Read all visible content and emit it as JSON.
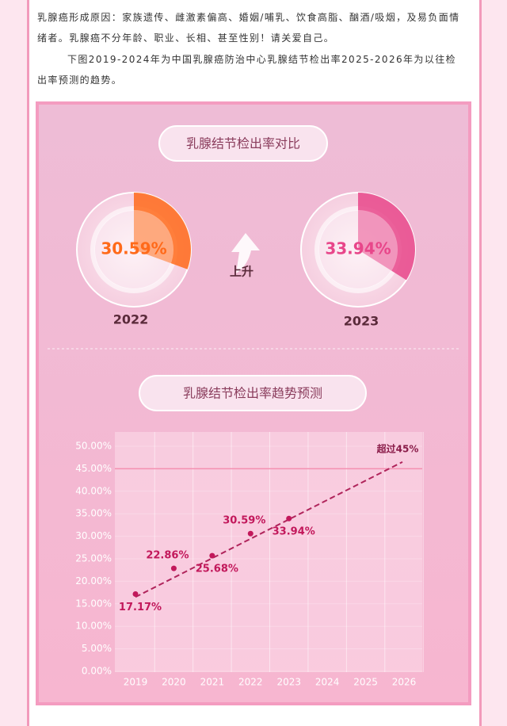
{
  "paragraphs": [
    "乳腺癌形成原因：家族遗传、雌激素偏高、婚姻/哺乳、饮食高脂、酗酒/吸烟，及易负面情绪者。乳腺癌不分年龄、职业、长相、甚至性别！请关爱自己。",
    "下图2019-2024年为中国乳腺癌防治中心乳腺结节检出率2025-2026年为以往检出率预测的趋势。"
  ],
  "comparison": {
    "title": "乳腺结节检出率对比",
    "change_label": "上升",
    "items": [
      {
        "year": "2022",
        "value": 30.59,
        "value_label": "30.59%",
        "color": "#ff6a1a"
      },
      {
        "year": "2023",
        "value": 33.94,
        "value_label": "33.94%",
        "color": "#e8468a"
      }
    ]
  },
  "chart_data": {
    "type": "line",
    "title": "乳腺结节检出率趋势预测",
    "categories": [
      "2019",
      "2020",
      "2021",
      "2022",
      "2023",
      "2024",
      "2025",
      "2026"
    ],
    "series": [
      {
        "color": "#c2185b",
        "values": [
          17.17,
          22.86,
          25.68,
          30.59,
          33.94,
          null,
          null,
          null
        ],
        "value_labels": [
          "17.17%",
          "22.86%",
          "25.68%",
          "30.59%",
          "33.94%",
          null,
          null,
          null
        ]
      }
    ],
    "trend": {
      "values": [
        16.5,
        46.5
      ],
      "color": "#b0245b"
    },
    "reference_line": 45,
    "annotation": "超过45%",
    "ylim": [
      0,
      50
    ],
    "yticks": [
      {
        "value": 0,
        "label": "0.00%"
      },
      {
        "value": 5,
        "label": "5.00%"
      },
      {
        "value": 10,
        "label": "10.00%"
      },
      {
        "value": 15,
        "label": "15.00%"
      },
      {
        "value": 20,
        "label": "20.00%"
      },
      {
        "value": 25,
        "label": "25.00%"
      },
      {
        "value": 30,
        "label": "30.00%"
      },
      {
        "value": 35,
        "label": "35.00%"
      },
      {
        "value": 40,
        "label": "40.00%"
      },
      {
        "value": 45,
        "label": "45.00%"
      },
      {
        "value": 50,
        "label": "50.00%"
      }
    ],
    "grid": true
  }
}
